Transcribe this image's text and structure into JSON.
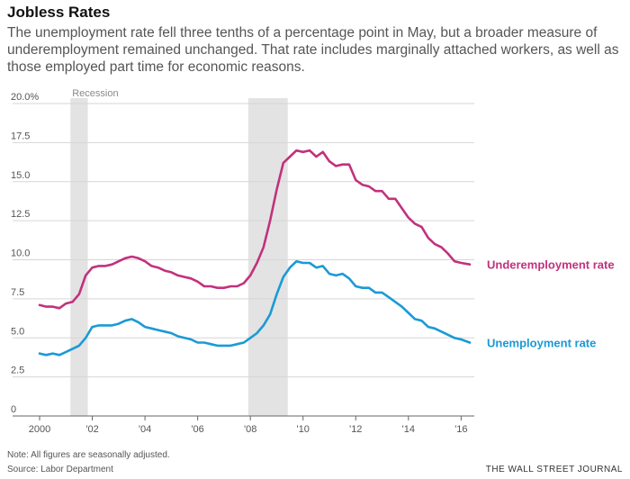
{
  "header": {
    "title": "Jobless Rates",
    "subtitle": "The unemployment rate fell three tenths of a percentage point in May, but a broader measure of underemployment remained unchanged. That rate includes marginally attached workers, as well as those employed part time for economic reasons."
  },
  "footer": {
    "note": "Note: All figures are seasonally adjusted.",
    "source": "Source: Labor Department",
    "brand": "THE WALL STREET JOURNAL"
  },
  "chart_data": {
    "type": "line",
    "xlim": [
      2000,
      2016.5
    ],
    "ylim": [
      0,
      20
    ],
    "grid": true,
    "y_ticks": [
      0,
      2.5,
      5,
      7.5,
      10,
      12.5,
      15,
      17.5,
      20
    ],
    "y_tick_labels": [
      "0",
      "2.5",
      "5.0",
      "7.5",
      "10.0",
      "12.5",
      "15.0",
      "17.5",
      "20.0%"
    ],
    "x_ticks": [
      2000,
      2002,
      2004,
      2006,
      2008,
      2010,
      2012,
      2014,
      2016
    ],
    "x_tick_labels": [
      "2000",
      "'02",
      "'04",
      "'06",
      "'08",
      "'10",
      "'12",
      "'14",
      "'16"
    ],
    "recession_label": "Recession",
    "recessions": [
      [
        2001.17,
        2001.83
      ],
      [
        2007.92,
        2009.42
      ]
    ],
    "colors": {
      "underemployment": "#c2317d",
      "unemployment": "#1a9ad6",
      "recession": "#e3e3e3",
      "grid": "#d6d6d6"
    },
    "series": [
      {
        "name": "Underemployment rate",
        "color": "#c2317d",
        "points": [
          [
            2000.0,
            7.1
          ],
          [
            2000.25,
            7.0
          ],
          [
            2000.5,
            7.0
          ],
          [
            2000.75,
            6.9
          ],
          [
            2001.0,
            7.2
          ],
          [
            2001.25,
            7.3
          ],
          [
            2001.5,
            7.8
          ],
          [
            2001.75,
            9.0
          ],
          [
            2002.0,
            9.5
          ],
          [
            2002.25,
            9.6
          ],
          [
            2002.5,
            9.6
          ],
          [
            2002.75,
            9.7
          ],
          [
            2003.0,
            9.9
          ],
          [
            2003.25,
            10.1
          ],
          [
            2003.5,
            10.2
          ],
          [
            2003.75,
            10.1
          ],
          [
            2004.0,
            9.9
          ],
          [
            2004.25,
            9.6
          ],
          [
            2004.5,
            9.5
          ],
          [
            2004.75,
            9.3
          ],
          [
            2005.0,
            9.2
          ],
          [
            2005.25,
            9.0
          ],
          [
            2005.5,
            8.9
          ],
          [
            2005.75,
            8.8
          ],
          [
            2006.0,
            8.6
          ],
          [
            2006.25,
            8.3
          ],
          [
            2006.5,
            8.3
          ],
          [
            2006.75,
            8.2
          ],
          [
            2007.0,
            8.2
          ],
          [
            2007.25,
            8.3
          ],
          [
            2007.5,
            8.3
          ],
          [
            2007.75,
            8.5
          ],
          [
            2008.0,
            9.0
          ],
          [
            2008.25,
            9.8
          ],
          [
            2008.5,
            10.8
          ],
          [
            2008.75,
            12.5
          ],
          [
            2009.0,
            14.5
          ],
          [
            2009.25,
            16.2
          ],
          [
            2009.5,
            16.6
          ],
          [
            2009.75,
            17.0
          ],
          [
            2010.0,
            16.9
          ],
          [
            2010.25,
            17.0
          ],
          [
            2010.5,
            16.6
          ],
          [
            2010.75,
            16.9
          ],
          [
            2011.0,
            16.3
          ],
          [
            2011.25,
            16.0
          ],
          [
            2011.5,
            16.1
          ],
          [
            2011.75,
            16.1
          ],
          [
            2012.0,
            15.1
          ],
          [
            2012.25,
            14.8
          ],
          [
            2012.5,
            14.7
          ],
          [
            2012.75,
            14.4
          ],
          [
            2013.0,
            14.4
          ],
          [
            2013.25,
            13.9
          ],
          [
            2013.5,
            13.9
          ],
          [
            2013.75,
            13.3
          ],
          [
            2014.0,
            12.7
          ],
          [
            2014.25,
            12.3
          ],
          [
            2014.5,
            12.1
          ],
          [
            2014.75,
            11.4
          ],
          [
            2015.0,
            11.0
          ],
          [
            2015.25,
            10.8
          ],
          [
            2015.5,
            10.4
          ],
          [
            2015.75,
            9.9
          ],
          [
            2016.0,
            9.8
          ],
          [
            2016.33,
            9.7
          ]
        ]
      },
      {
        "name": "Unemployment rate",
        "color": "#1a9ad6",
        "points": [
          [
            2000.0,
            4.0
          ],
          [
            2000.25,
            3.9
          ],
          [
            2000.5,
            4.0
          ],
          [
            2000.75,
            3.9
          ],
          [
            2001.0,
            4.1
          ],
          [
            2001.25,
            4.3
          ],
          [
            2001.5,
            4.5
          ],
          [
            2001.75,
            5.0
          ],
          [
            2002.0,
            5.7
          ],
          [
            2002.25,
            5.8
          ],
          [
            2002.5,
            5.8
          ],
          [
            2002.75,
            5.8
          ],
          [
            2003.0,
            5.9
          ],
          [
            2003.25,
            6.1
          ],
          [
            2003.5,
            6.2
          ],
          [
            2003.75,
            6.0
          ],
          [
            2004.0,
            5.7
          ],
          [
            2004.25,
            5.6
          ],
          [
            2004.5,
            5.5
          ],
          [
            2004.75,
            5.4
          ],
          [
            2005.0,
            5.3
          ],
          [
            2005.25,
            5.1
          ],
          [
            2005.5,
            5.0
          ],
          [
            2005.75,
            4.9
          ],
          [
            2006.0,
            4.7
          ],
          [
            2006.25,
            4.7
          ],
          [
            2006.5,
            4.6
          ],
          [
            2006.75,
            4.5
          ],
          [
            2007.0,
            4.5
          ],
          [
            2007.25,
            4.5
          ],
          [
            2007.5,
            4.6
          ],
          [
            2007.75,
            4.7
          ],
          [
            2008.0,
            5.0
          ],
          [
            2008.25,
            5.3
          ],
          [
            2008.5,
            5.8
          ],
          [
            2008.75,
            6.5
          ],
          [
            2009.0,
            7.8
          ],
          [
            2009.25,
            8.9
          ],
          [
            2009.5,
            9.5
          ],
          [
            2009.75,
            9.9
          ],
          [
            2010.0,
            9.8
          ],
          [
            2010.25,
            9.8
          ],
          [
            2010.5,
            9.5
          ],
          [
            2010.75,
            9.6
          ],
          [
            2011.0,
            9.1
          ],
          [
            2011.25,
            9.0
          ],
          [
            2011.5,
            9.1
          ],
          [
            2011.75,
            8.8
          ],
          [
            2012.0,
            8.3
          ],
          [
            2012.25,
            8.2
          ],
          [
            2012.5,
            8.2
          ],
          [
            2012.75,
            7.9
          ],
          [
            2013.0,
            7.9
          ],
          [
            2013.25,
            7.6
          ],
          [
            2013.5,
            7.3
          ],
          [
            2013.75,
            7.0
          ],
          [
            2014.0,
            6.6
          ],
          [
            2014.25,
            6.2
          ],
          [
            2014.5,
            6.1
          ],
          [
            2014.75,
            5.7
          ],
          [
            2015.0,
            5.6
          ],
          [
            2015.25,
            5.4
          ],
          [
            2015.5,
            5.2
          ],
          [
            2015.75,
            5.0
          ],
          [
            2016.0,
            4.9
          ],
          [
            2016.33,
            4.7
          ]
        ]
      }
    ]
  }
}
